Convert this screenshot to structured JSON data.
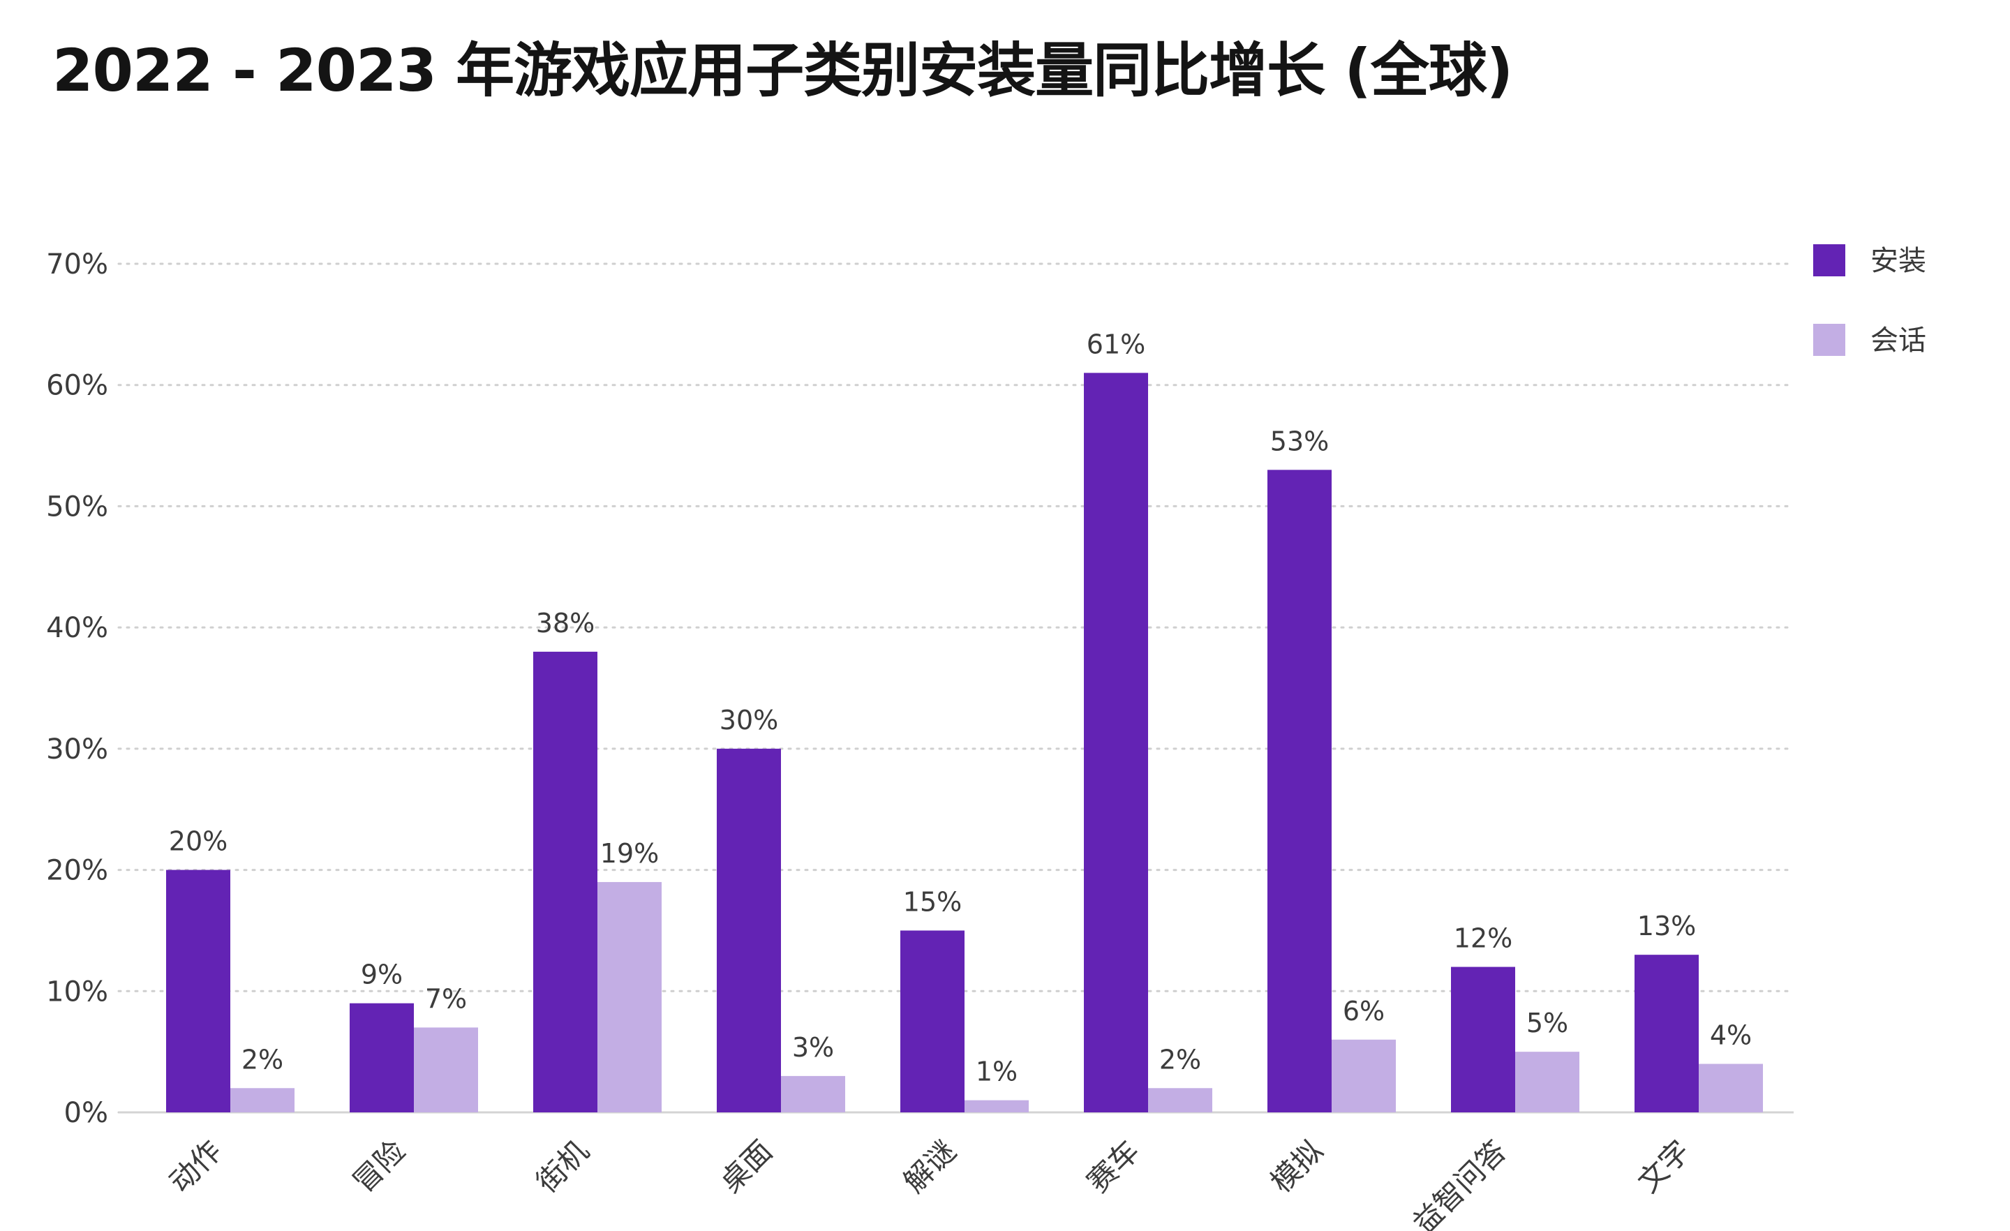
{
  "chart_data": {
    "type": "bar",
    "title": "2022 - 2023 年游戏应用子类别安装量同比增长 (全球)",
    "categories": [
      "动作",
      "冒险",
      "街机",
      "桌面",
      "解谜",
      "赛车",
      "模拟",
      "益智问答",
      "文字"
    ],
    "series": [
      {
        "name": "安装",
        "values": [
          20,
          9,
          38,
          30,
          15,
          61,
          53,
          12,
          13
        ],
        "labels": [
          "20%",
          "9%",
          "38%",
          "30%",
          "15%",
          "61%",
          "53%",
          "12%",
          "13%"
        ],
        "color": "#6323b4"
      },
      {
        "name": "会话",
        "values": [
          2,
          7,
          19,
          3,
          1,
          2,
          6,
          5,
          4
        ],
        "labels": [
          "2%",
          "7%",
          "19%",
          "3%",
          "1%",
          "2%",
          "6%",
          "5%",
          "4%"
        ],
        "color": "#c3aee4"
      }
    ],
    "yticks": [
      0,
      10,
      20,
      30,
      40,
      50,
      60,
      70
    ],
    "ytick_labels": [
      "0%",
      "10%",
      "20%",
      "30%",
      "40%",
      "50%",
      "60%",
      "70%"
    ],
    "ylim": [
      0,
      70
    ],
    "xlabel": "",
    "ylabel": "",
    "grid": "horizontal dotted",
    "legend_position": "top-right",
    "x_label_rotation": "45 degrees"
  }
}
